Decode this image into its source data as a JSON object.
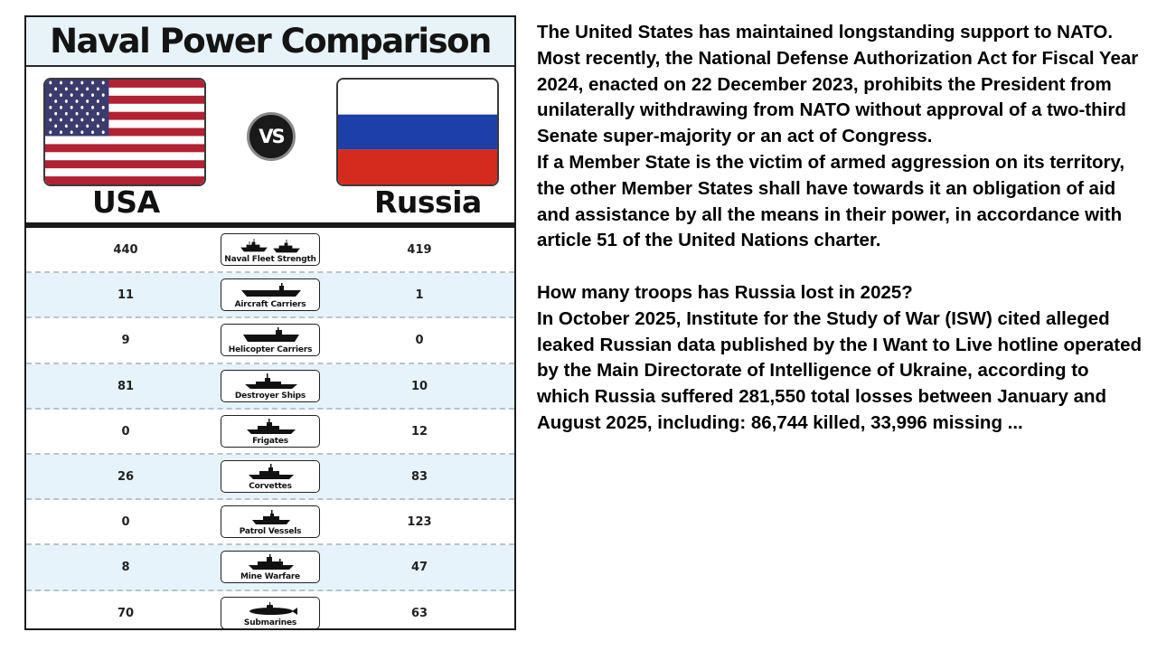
{
  "infographic": {
    "title": "Naval Power Comparison",
    "vs_label": "VS",
    "country_left": "USA",
    "country_right": "Russia",
    "rows": [
      {
        "category": "Naval Fleet Strength",
        "usa": "440",
        "russia": "419",
        "icon": "naval-fleet-icon"
      },
      {
        "category": "Aircraft Carriers",
        "usa": "11",
        "russia": "1",
        "icon": "aircraft-carrier-icon"
      },
      {
        "category": "Helicopter Carriers",
        "usa": "9",
        "russia": "0",
        "icon": "helicopter-carrier-icon"
      },
      {
        "category": "Destroyer Ships",
        "usa": "81",
        "russia": "10",
        "icon": "destroyer-icon"
      },
      {
        "category": "Frigates",
        "usa": "0",
        "russia": "12",
        "icon": "frigate-icon"
      },
      {
        "category": "Corvettes",
        "usa": "26",
        "russia": "83",
        "icon": "corvette-icon"
      },
      {
        "category": "Patrol Vessels",
        "usa": "0",
        "russia": "123",
        "icon": "patrol-vessel-icon"
      },
      {
        "category": "Mine Warfare",
        "usa": "8",
        "russia": "47",
        "icon": "mine-warfare-icon"
      },
      {
        "category": "Submarines",
        "usa": "70",
        "russia": "63",
        "icon": "submarine-icon"
      }
    ],
    "colors": {
      "header_bg": "#e7f2f9",
      "row_alt_bg": "#e6f3fb",
      "us_red": "#b22234",
      "us_blue": "#3c3b6e",
      "ru_blue": "#1c3fa8",
      "ru_red": "#d52b1e"
    }
  },
  "article": {
    "paragraphs": [
      "The United States has maintained longstanding support to NATO. Most recently, the National Defense Authorization Act for Fiscal Year 2024, enacted on 22 December 2023, prohibits the President from unilaterally withdrawing from NATO without approval of a two-third Senate super-majority or an act of Congress.",
      "If a Member State is the victim of armed aggression on its territory, the other Member States shall have towards it an obligation of aid and assistance by all the means in their power, in accordance with article 51 of the United Nations charter.",
      "How many troops has Russia lost in 2025?",
      "In October 2025, Institute for the Study of War (ISW) cited alleged leaked Russian data published by the I Want to Live hotline operated by the Main Directorate of Intelligence of Ukraine, according to which Russia suffered 281,550 total losses between January and August 2025, including: 86,744 killed, 33,996 missing ..."
    ]
  }
}
